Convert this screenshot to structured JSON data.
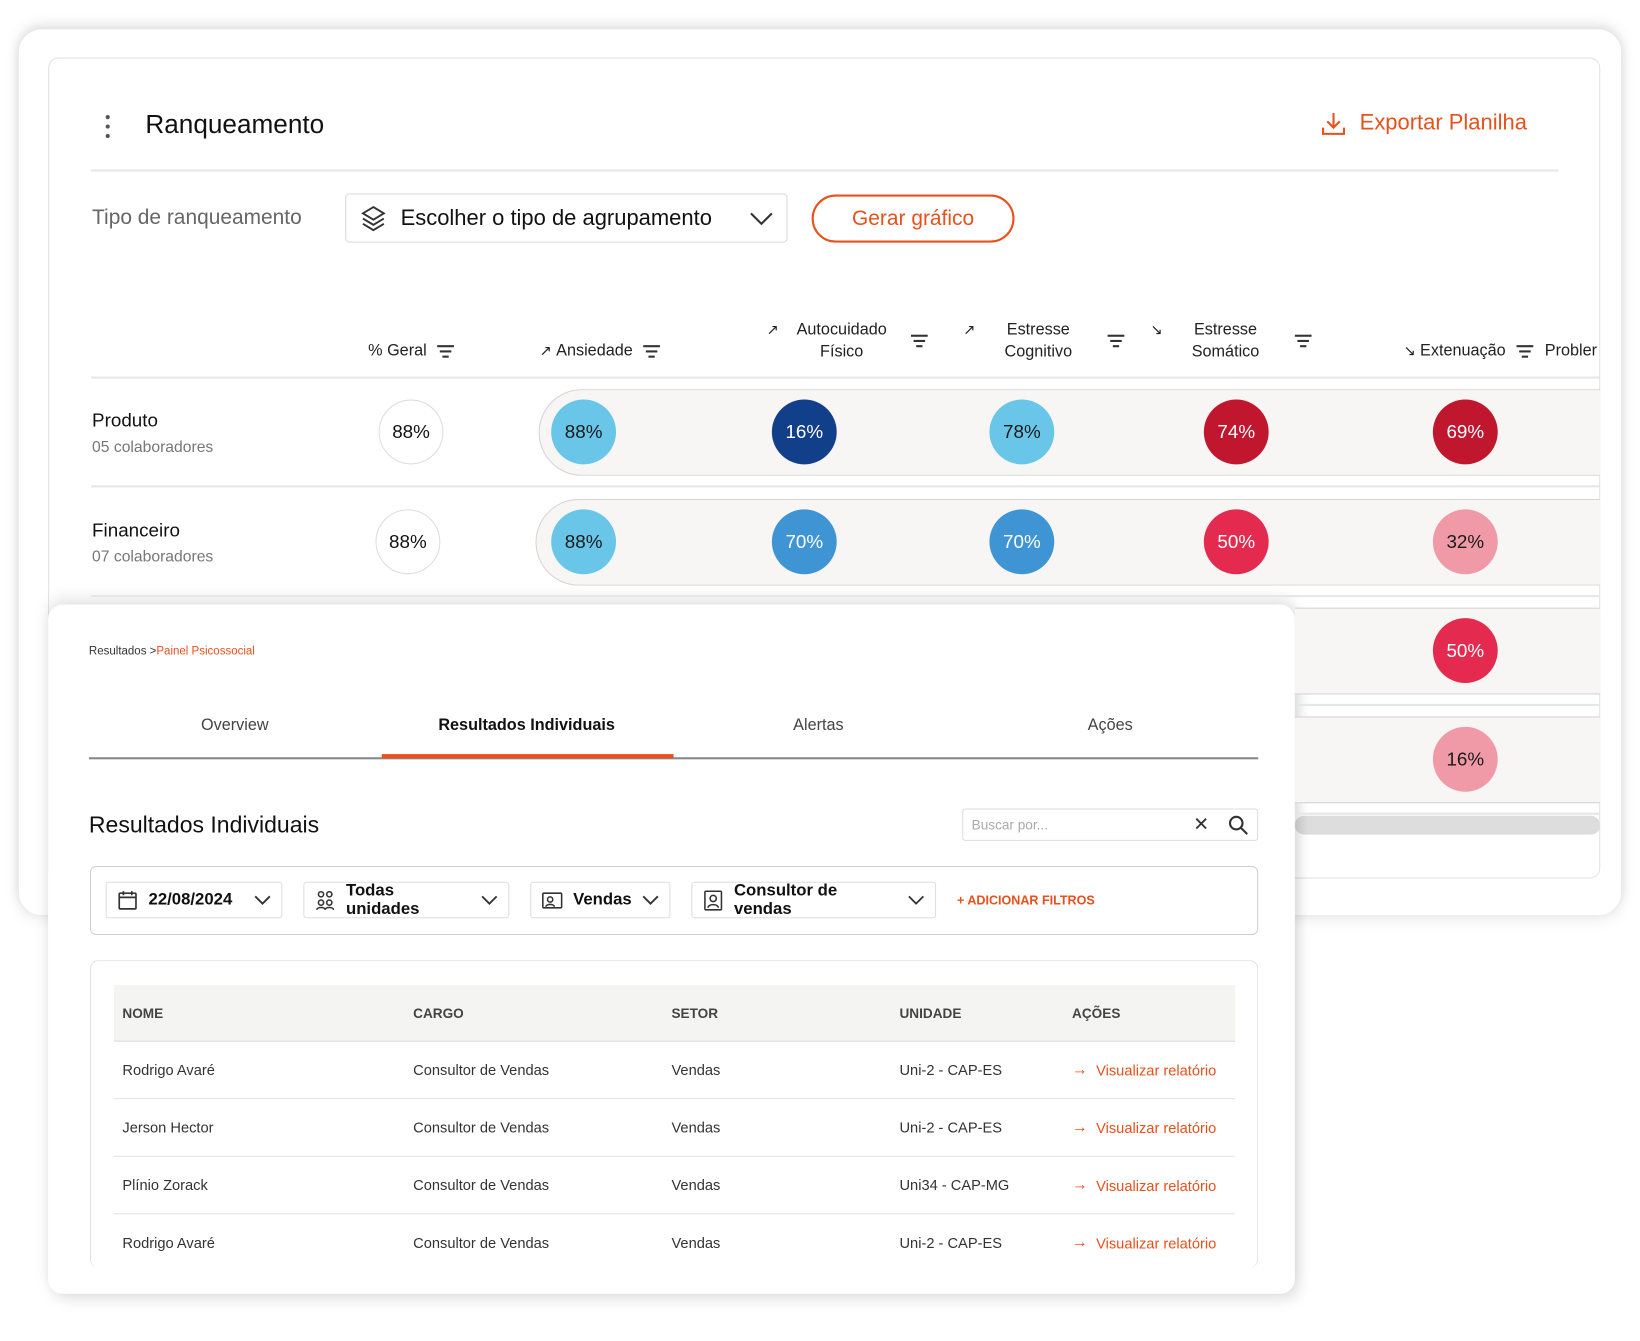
{
  "ranking": {
    "title": "Ranqueamento",
    "export_label": "Exportar Planilha",
    "type_label": "Tipo de ranqueamento",
    "select_value": "Escolher o tipo de agrupamento",
    "generate_label": "Gerar gráfico",
    "columns": [
      {
        "label": "% Geral",
        "arrow": ""
      },
      {
        "label": "Ansiedade",
        "arrow": "↗"
      },
      {
        "label": "Autocuidado Físico",
        "arrow": "↗"
      },
      {
        "label": "Estresse Cognitivo",
        "arrow": "↗"
      },
      {
        "label": "Estresse Somático",
        "arrow": "↘"
      },
      {
        "label": "Extenuação",
        "arrow": "↘"
      },
      {
        "label": "Probler",
        "arrow": ""
      }
    ],
    "rows": [
      {
        "name": "Produto",
        "sub": "05  colaboradores",
        "geral": "88%",
        "values": [
          {
            "v": "88%",
            "c": "#6ac6e8",
            "t": "#1a1a1a"
          },
          {
            "v": "16%",
            "c": "#123f8a",
            "t": "#fff"
          },
          {
            "v": "78%",
            "c": "#6ac6e8",
            "t": "#1a1a1a"
          },
          {
            "v": "74%",
            "c": "#c0172f",
            "t": "#fff"
          },
          {
            "v": "69%",
            "c": "#c0172f",
            "t": "#fff"
          }
        ]
      },
      {
        "name": "Financeiro",
        "sub": "07 colaboradores",
        "geral": "88%",
        "values": [
          {
            "v": "88%",
            "c": "#6ac6e8",
            "t": "#1a1a1a"
          },
          {
            "v": "70%",
            "c": "#3f95d4",
            "t": "#fff"
          },
          {
            "v": "70%",
            "c": "#3f95d4",
            "t": "#fff"
          },
          {
            "v": "50%",
            "c": "#e52a4f",
            "t": "#fff"
          },
          {
            "v": "32%",
            "c": "#f09aa8",
            "t": "#1a1a1a"
          }
        ]
      },
      {
        "extenuacao": {
          "v": "50%",
          "c": "#e52a4f",
          "t": "#fff"
        }
      },
      {
        "extenuacao": {
          "v": "16%",
          "c": "#f09aa8",
          "t": "#1a1a1a"
        }
      }
    ]
  },
  "results": {
    "breadcrumb": {
      "root": "Resultados >",
      "current": "Painel Psicossocial"
    },
    "tabs": [
      "Overview",
      "Resultados Individuais",
      "Alertas",
      "Ações"
    ],
    "active_tab": 1,
    "heading": "Resultados Individuais",
    "search_placeholder": "Buscar por...",
    "filters": {
      "date": "22/08/2024",
      "units": "Todas unidades",
      "sector": "Vendas",
      "role": "Consultor de vendas",
      "add": "+ ADICIONAR FILTROS"
    },
    "table": {
      "headers": [
        "NOME",
        "CARGO",
        "SETOR",
        "UNIDADE",
        "AÇÕES"
      ],
      "rows": [
        [
          "Rodrigo Avaré",
          "Consultor de Vendas",
          "Vendas",
          "Uni-2 - CAP-ES",
          "Visualizar relatório"
        ],
        [
          "Jerson Hector",
          "Consultor de Vendas",
          "Vendas",
          "Uni-2 - CAP-ES",
          "Visualizar relatório"
        ],
        [
          "Plínio Zorack",
          "Consultor de Vendas",
          "Vendas",
          "Uni34 - CAP-MG",
          "Visualizar relatório"
        ],
        [
          "Rodrigo Avaré",
          "Consultor de Vendas",
          "Vendas",
          "Uni-2 - CAP-ES",
          "Visualizar relatório"
        ]
      ]
    }
  },
  "colors": {
    "accent": "#e8501c"
  }
}
